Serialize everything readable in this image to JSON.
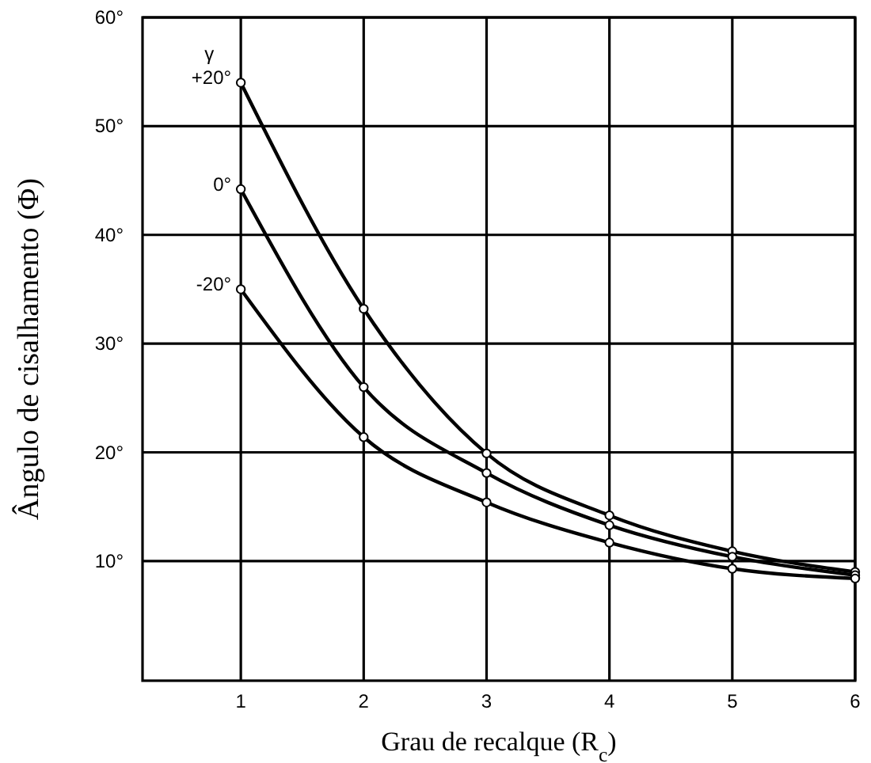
{
  "chart_data": {
    "type": "line",
    "xlabel": "Grau de recalque (R$_{c}$)",
    "ylabel": "Ângulo de cisalhamento (Φ)",
    "legend_title": "γ",
    "x": [
      1,
      2,
      3,
      4,
      5,
      6
    ],
    "series": [
      {
        "name": "+20°",
        "color": "#000000",
        "values": [
          54,
          33.2,
          19.9,
          14.2,
          10.9,
          9.0
        ]
      },
      {
        "name": "0°",
        "color": "#000000",
        "values": [
          44.2,
          26,
          18.1,
          13.3,
          10.4,
          8.7
        ]
      },
      {
        "name": "-20°",
        "color": "#000000",
        "values": [
          35,
          21.4,
          15.4,
          11.7,
          9.3,
          8.4
        ]
      }
    ],
    "xlim": [
      0.2,
      6
    ],
    "xticks": [
      1,
      2,
      3,
      4,
      5,
      6
    ],
    "ylim": [
      -1,
      60
    ],
    "yticks": [
      {
        "value": 10,
        "label": "10°"
      },
      {
        "value": 20,
        "label": "20°"
      },
      {
        "value": 30,
        "label": "30°"
      },
      {
        "value": 40,
        "label": "40°"
      },
      {
        "value": 50,
        "label": "50°"
      },
      {
        "value": 60,
        "label": "60°"
      }
    ],
    "grid": true,
    "marker": "circle",
    "line_style": "solid",
    "legend": "top left"
  }
}
